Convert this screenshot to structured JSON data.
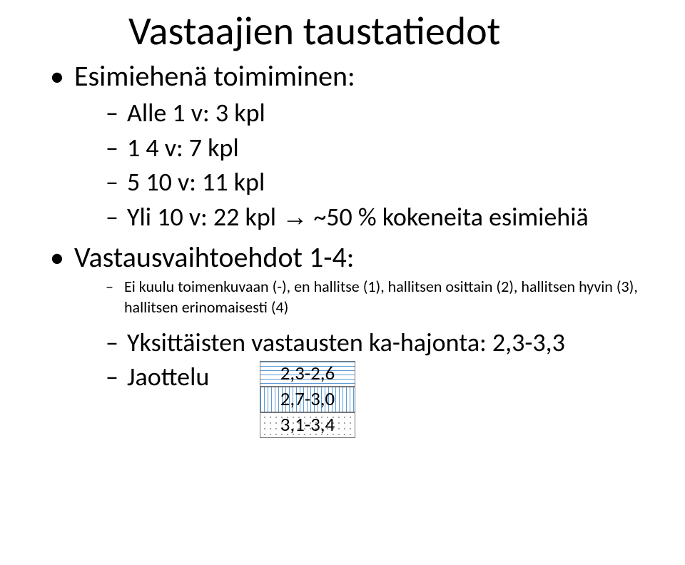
{
  "title": "Vastaajien taustatiedot",
  "bullets": {
    "esimiehena": "Esimiehenä toimiminen:",
    "sub_esimiehena": [
      "Alle 1 v: 3 kpl",
      "1 4 v: 7 kpl",
      "5 10 v: 11 kpl",
      "Yli 10 v: 22 kpl "
    ],
    "arrow_tail": " ~50 % kokeneita esimiehiä",
    "vastausvaihtoehdot": "Vastausvaihtoehdot 1-4:",
    "sub_vastaus_small": "Ei kuulu toimenkuvaan (-), en hallitse (1), hallitsen osittain (2), hallitsen hyvin (3), hallitsen erinomaisesti (4)",
    "ka_hajonta": "Yksittäisten vastausten ka-hajonta: 2,3-3,3",
    "jaottelu": "Jaottelu"
  },
  "legend": {
    "a": "2,3-2,6",
    "b": "2,7-3,0",
    "c": "3,1-3,4",
    "color_line": "#5b9bd5",
    "color_border": "#757575",
    "color_dot": "#888888"
  },
  "arrow_glyph": "→"
}
